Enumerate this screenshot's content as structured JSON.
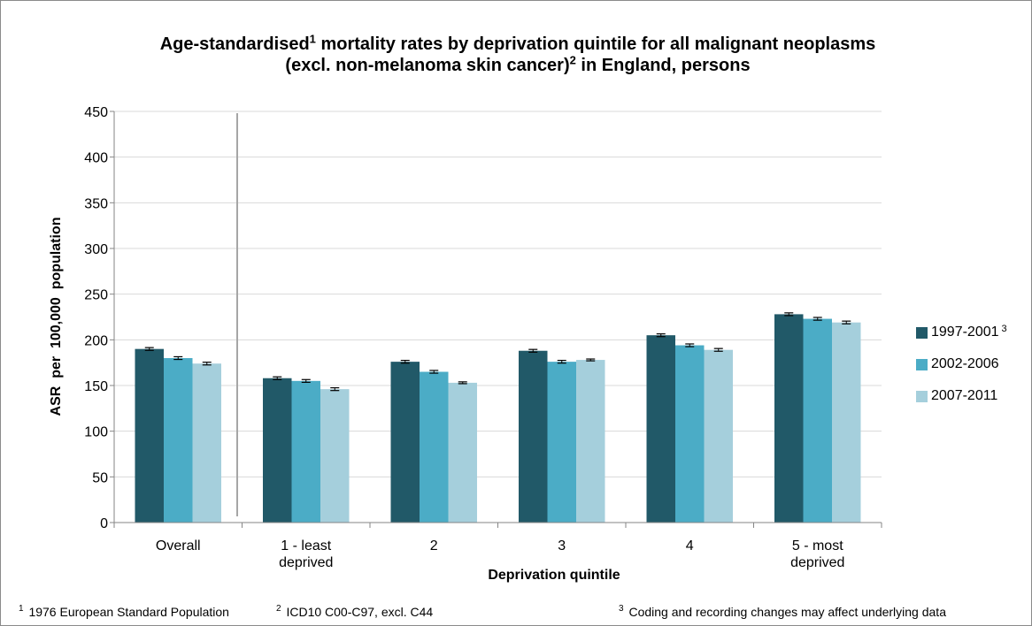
{
  "chart_data": {
    "type": "bar",
    "title_line1": "Age-standardised",
    "title_sup1": "1",
    "title_line1_rest": " mortality rates by deprivation quintile for all malignant neoplasms",
    "title_line2": "(excl. non-melanoma skin cancer)",
    "title_sup2": "2",
    "title_line2_rest": " in England, persons",
    "xlabel": "Deprivation quintile",
    "ylabel": "ASR  per  100,000  population",
    "ylim": [
      0,
      450
    ],
    "yticks": [
      0,
      50,
      100,
      150,
      200,
      250,
      300,
      350,
      400,
      450
    ],
    "grid": true,
    "legend_position": "right",
    "categories": [
      [
        "Overall"
      ],
      [
        "1 - least",
        "deprived"
      ],
      [
        "2"
      ],
      [
        "3"
      ],
      [
        "4"
      ],
      [
        "5 - most",
        "deprived"
      ]
    ],
    "series": [
      {
        "name": "1997-2001",
        "sup": "3",
        "color": "#215968",
        "values": [
          190,
          158,
          176,
          188,
          205,
          228
        ],
        "error": [
          1.5,
          1.5,
          1.5,
          1.5,
          1.5,
          1.5
        ]
      },
      {
        "name": "2002-2006",
        "sup": "",
        "color": "#4bacc6",
        "values": [
          180,
          155,
          165,
          176,
          194,
          223
        ],
        "error": [
          1.5,
          1.5,
          1.5,
          1.5,
          1.5,
          1.5
        ]
      },
      {
        "name": "2007-2011",
        "sup": "",
        "color": "#a5cfdc",
        "values": [
          174,
          146,
          153,
          178,
          189,
          219
        ],
        "error": [
          1.5,
          1.5,
          1,
          1,
          1.5,
          1.5
        ]
      }
    ]
  },
  "footnotes": [
    {
      "sup": "1",
      "text": " 1976 European Standard Population"
    },
    {
      "sup": "2",
      "text": " ICD10 C00-C97, excl. C44"
    },
    {
      "sup": "3",
      "text": " Coding and recording changes may affect underlying data"
    }
  ]
}
